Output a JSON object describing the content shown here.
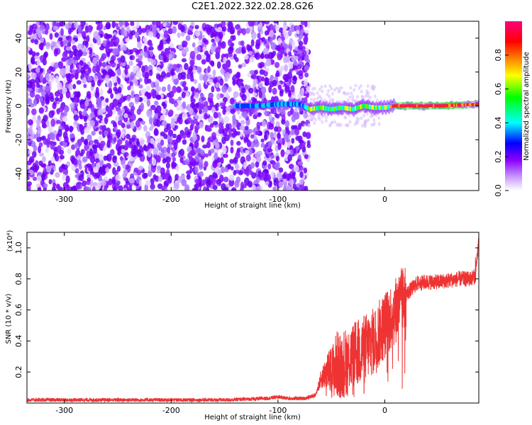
{
  "title": "C2E1.2022.322.02.28.G26",
  "chart_data": [
    {
      "type": "heatmap",
      "xlabel": "Height of straight line (km)",
      "ylabel": "Frequency (Hz)",
      "xlim": [
        -335,
        88
      ],
      "ylim": [
        -50,
        50
      ],
      "xticks": [
        -300,
        -200,
        -100,
        0
      ],
      "yticks": [
        -40,
        -20,
        0,
        20,
        40
      ],
      "noise_region_x": [
        -335,
        -75
      ],
      "signal_track": {
        "x": [
          -140,
          -120,
          -100,
          -80,
          -70,
          -60,
          -50,
          -40,
          -30,
          -20,
          -10,
          0,
          10,
          30,
          50,
          70,
          88
        ],
        "y": [
          0,
          0,
          1,
          1,
          -2,
          -1,
          -2,
          -1,
          -2,
          0,
          -1,
          -1,
          0,
          0,
          0,
          0.5,
          1
        ]
      },
      "colorbar": {
        "label": "Normalized spectral amplitude",
        "range": [
          0.0,
          1.0
        ],
        "ticks": [
          "0.0",
          "0.2",
          "0.4",
          "0.6",
          "0.8"
        ],
        "colormap": [
          "#ffffff",
          "#8a00ff",
          "#0000ff",
          "#00ffff",
          "#00ff00",
          "#ffff00",
          "#ff8000",
          "#ff0000",
          "#ff0080"
        ]
      }
    },
    {
      "type": "line",
      "xlabel": "Height of straight line (km)",
      "ylabel": "SNR (10 * v/v)",
      "yscale_label": "(x10⁴)",
      "xlim": [
        -335,
        88
      ],
      "ylim": [
        0,
        1.1
      ],
      "xticks": [
        -300,
        -200,
        -100,
        0
      ],
      "yticks": [
        0.2,
        0.4,
        0.6,
        0.8,
        1.0
      ],
      "color": "#ee3333",
      "series": [
        {
          "x": [
            -335,
            -300,
            -250,
            -200,
            -150,
            -110,
            -100,
            -90,
            -75,
            -65,
            -60,
            -55,
            -50,
            -45,
            -40,
            -30,
            -20,
            -10,
            0,
            10,
            20,
            30,
            40,
            50,
            60,
            70,
            75,
            80,
            85,
            88
          ],
          "y": [
            0.02,
            0.02,
            0.02,
            0.02,
            0.02,
            0.03,
            0.04,
            0.03,
            0.03,
            0.05,
            0.15,
            0.2,
            0.2,
            0.25,
            0.25,
            0.3,
            0.35,
            0.4,
            0.5,
            0.6,
            0.7,
            0.77,
            0.78,
            0.78,
            0.79,
            0.8,
            0.8,
            0.8,
            0.82,
            1.05
          ]
        }
      ]
    }
  ]
}
